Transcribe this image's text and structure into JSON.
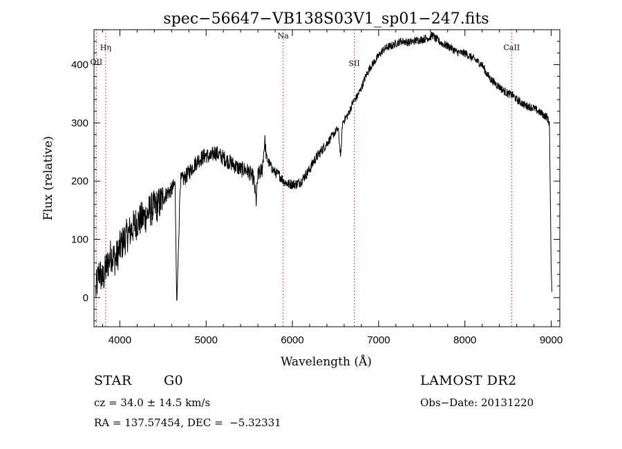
{
  "chart_data": {
    "type": "line",
    "title": "spec−56647−VB138S03V1_sp01−247.fits",
    "xlabel": "Wavelength (Å)",
    "ylabel": "Flux (relative)",
    "xlim": [
      3700,
      9100
    ],
    "ylim": [
      -50,
      460
    ],
    "xticks": [
      4000,
      5000,
      6000,
      7000,
      8000,
      9000
    ],
    "yticks": [
      0,
      100,
      200,
      300,
      400
    ],
    "grid": false,
    "line_color": "#000000",
    "marker_color": "#ff0000",
    "spectrum": {
      "name": "flux",
      "x": [
        3720,
        3760,
        3800,
        3850,
        3900,
        3950,
        4000,
        4050,
        4100,
        4150,
        4200,
        4250,
        4300,
        4350,
        4400,
        4450,
        4500,
        4550,
        4600,
        4640,
        4660,
        4700,
        4750,
        4800,
        4850,
        4900,
        4950,
        5000,
        5050,
        5100,
        5150,
        5200,
        5250,
        5300,
        5350,
        5400,
        5450,
        5500,
        5550,
        5580,
        5600,
        5650,
        5680,
        5700,
        5750,
        5800,
        5850,
        5900,
        5950,
        6000,
        6050,
        6100,
        6150,
        6200,
        6250,
        6300,
        6350,
        6400,
        6450,
        6500,
        6530,
        6562,
        6580,
        6600,
        6650,
        6700,
        6750,
        6800,
        6850,
        6900,
        6950,
        7000,
        7050,
        7100,
        7150,
        7200,
        7250,
        7300,
        7350,
        7400,
        7450,
        7500,
        7550,
        7600,
        7620,
        7650,
        7700,
        7750,
        7800,
        7850,
        7900,
        7950,
        8000,
        8050,
        8100,
        8150,
        8200,
        8250,
        8300,
        8350,
        8400,
        8450,
        8500,
        8550,
        8600,
        8650,
        8700,
        8750,
        8800,
        8850,
        8900,
        8950,
        8980,
        9000,
        9010
      ],
      "y": [
        10,
        45,
        30,
        55,
        75,
        65,
        85,
        100,
        110,
        120,
        130,
        135,
        140,
        150,
        155,
        160,
        170,
        180,
        185,
        195,
        -15,
        200,
        205,
        215,
        225,
        235,
        240,
        245,
        240,
        250,
        245,
        240,
        235,
        230,
        225,
        220,
        220,
        215,
        205,
        165,
        210,
        220,
        270,
        240,
        225,
        215,
        210,
        200,
        195,
        195,
        195,
        200,
        210,
        220,
        235,
        245,
        255,
        265,
        275,
        285,
        290,
        240,
        300,
        305,
        315,
        335,
        345,
        360,
        380,
        395,
        405,
        415,
        425,
        430,
        432,
        436,
        440,
        440,
        438,
        440,
        442,
        443,
        445,
        447,
        452,
        446,
        440,
        435,
        432,
        428,
        422,
        420,
        420,
        415,
        410,
        405,
        400,
        385,
        375,
        368,
        362,
        355,
        350,
        348,
        340,
        335,
        330,
        328,
        325,
        320,
        315,
        310,
        300,
        50,
        5
      ]
    },
    "markers": [
      {
        "label": "OII",
        "x": 3727,
        "label_y": 400
      },
      {
        "label": "Hη",
        "x": 3835,
        "label_y": 425
      },
      {
        "label": "Na",
        "x": 5893,
        "label_y": 445
      },
      {
        "label": "SII",
        "x": 6717,
        "label_y": 398
      },
      {
        "label": "CaII",
        "x": 8542,
        "label_y": 425
      }
    ]
  },
  "info": {
    "object_type": "STAR",
    "subclass": "G0",
    "survey": "LAMOST DR2",
    "cz": "cz = 34.0 ± 14.5 km/s",
    "obs_date": "Obs−Date: 20131220",
    "coords": "RA = 137.57454, DEC =  −5.32331"
  }
}
